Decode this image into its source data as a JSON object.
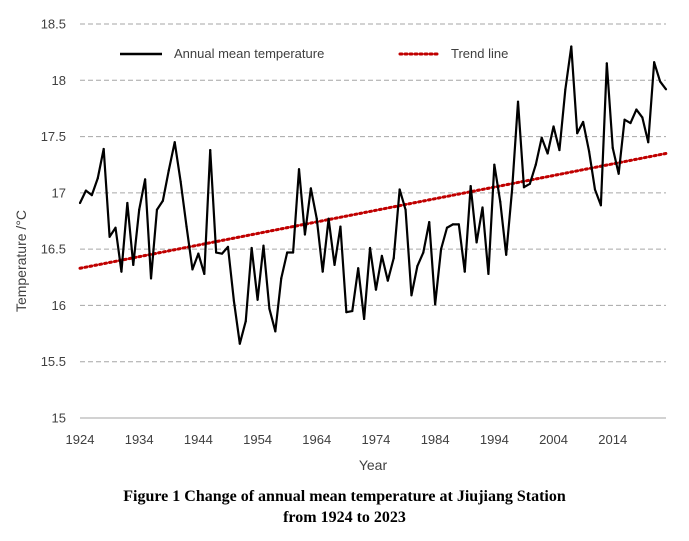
{
  "chart_data": {
    "type": "line",
    "xlabel": "Year",
    "ylabel": "Temperature /°C",
    "xlim": [
      1924,
      2023
    ],
    "ylim": [
      15,
      18.5
    ],
    "yticks": [
      "15",
      "15.5",
      "16",
      "16.5",
      "17",
      "17.5",
      "18",
      "18.5"
    ],
    "xticks": [
      "1924",
      "1934",
      "1944",
      "1954",
      "1964",
      "1974",
      "1984",
      "1994",
      "2004",
      "2014"
    ],
    "grid": "horizontal dashed",
    "legend_position": "top",
    "colors": {
      "series": "#000000",
      "trend": "#c00000",
      "grid": "#a6a6a6"
    },
    "series": [
      {
        "name": "Annual mean temperature",
        "x": [
          1924,
          1925,
          1926,
          1927,
          1928,
          1929,
          1930,
          1931,
          1932,
          1933,
          1934,
          1935,
          1936,
          1937,
          1938,
          1939,
          1940,
          1941,
          1942,
          1943,
          1944,
          1945,
          1946,
          1947,
          1948,
          1949,
          1950,
          1951,
          1952,
          1953,
          1954,
          1955,
          1956,
          1957,
          1958,
          1959,
          1960,
          1961,
          1962,
          1963,
          1964,
          1965,
          1966,
          1967,
          1968,
          1969,
          1970,
          1971,
          1972,
          1973,
          1974,
          1975,
          1976,
          1977,
          1978,
          1979,
          1980,
          1981,
          1982,
          1983,
          1984,
          1985,
          1986,
          1987,
          1988,
          1989,
          1990,
          1991,
          1992,
          1993,
          1994,
          1995,
          1996,
          1997,
          1998,
          1999,
          2000,
          2001,
          2002,
          2003,
          2004,
          2005,
          2006,
          2007,
          2008,
          2009,
          2010,
          2011,
          2012,
          2013,
          2014,
          2015,
          2016,
          2017,
          2018,
          2019,
          2020,
          2021,
          2022,
          2023
        ],
        "values": [
          16.91,
          17.02,
          16.98,
          17.13,
          17.39,
          16.61,
          16.69,
          16.3,
          16.91,
          16.36,
          16.85,
          17.12,
          16.24,
          16.85,
          16.93,
          17.2,
          17.45,
          17.1,
          16.7,
          16.32,
          16.46,
          16.28,
          17.38,
          16.47,
          16.46,
          16.52,
          16.04,
          15.66,
          15.86,
          16.51,
          16.05,
          16.53,
          15.97,
          15.77,
          16.24,
          16.47,
          16.47,
          17.21,
          16.63,
          17.04,
          16.77,
          16.3,
          16.77,
          16.36,
          16.7,
          15.94,
          15.95,
          16.33,
          15.88,
          16.51,
          16.14,
          16.44,
          16.22,
          16.42,
          17.03,
          16.85,
          16.09,
          16.35,
          16.47,
          16.74,
          16.01,
          16.5,
          16.69,
          16.72,
          16.72,
          16.3,
          17.06,
          16.56,
          16.87,
          16.28,
          17.25,
          16.92,
          16.45,
          17.03,
          17.81,
          17.05,
          17.08,
          17.25,
          17.49,
          17.35,
          17.59,
          17.38,
          17.92,
          18.3,
          17.53,
          17.63,
          17.37,
          17.03,
          16.89,
          18.15,
          17.4,
          17.17,
          17.65,
          17.62,
          17.74,
          17.67,
          17.45,
          18.16,
          17.99,
          17.92
        ]
      },
      {
        "name": "Trend line",
        "x": [
          1924,
          2023
        ],
        "values": [
          16.33,
          17.35
        ]
      }
    ],
    "caption_lines": [
      "Figure 1 Change of annual mean temperature at Jiujiang Station",
      "from 1924 to 2023"
    ]
  }
}
